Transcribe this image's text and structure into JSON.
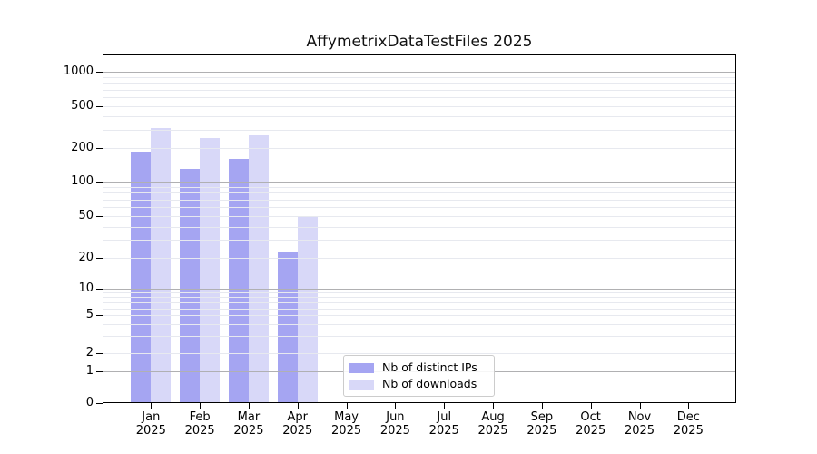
{
  "title": "AffymetrixDataTestFiles 2025",
  "chart_data": {
    "type": "bar",
    "title": "AffymetrixDataTestFiles 2025",
    "categories": [
      "Jan",
      "Feb",
      "Mar",
      "Apr",
      "May",
      "Jun",
      "Jul",
      "Aug",
      "Sep",
      "Oct",
      "Nov",
      "Dec"
    ],
    "year_label": "2025",
    "series": [
      {
        "name": "Nb of distinct IPs",
        "color": "#a5a5f2",
        "values": [
          185,
          130,
          160,
          23,
          0,
          0,
          0,
          0,
          0,
          0,
          0,
          0
        ]
      },
      {
        "name": "Nb of downloads",
        "color": "#d8d8f8",
        "values": [
          310,
          250,
          265,
          50,
          0,
          0,
          0,
          0,
          0,
          0,
          0,
          0
        ]
      }
    ],
    "xlabel": "",
    "ylabel": "",
    "yscale": "asinh-log",
    "ylim": [
      0,
      1430
    ],
    "yticks": [
      0,
      1,
      2,
      5,
      10,
      20,
      50,
      100,
      200,
      500,
      1000
    ],
    "y_major_gridlines": [
      1,
      10,
      100,
      1000
    ],
    "y_minor_gridlines": [
      2,
      3,
      4,
      5,
      6,
      7,
      8,
      9,
      20,
      30,
      40,
      50,
      60,
      70,
      80,
      90,
      200,
      300,
      400,
      500,
      600,
      700,
      800,
      900
    ],
    "grid": "on",
    "legend_position": "lower center"
  },
  "colors": {
    "major_grid": "#b0b0b2",
    "minor_grid": "#e7e9ef",
    "spine": "#000000",
    "text": "#111111"
  }
}
